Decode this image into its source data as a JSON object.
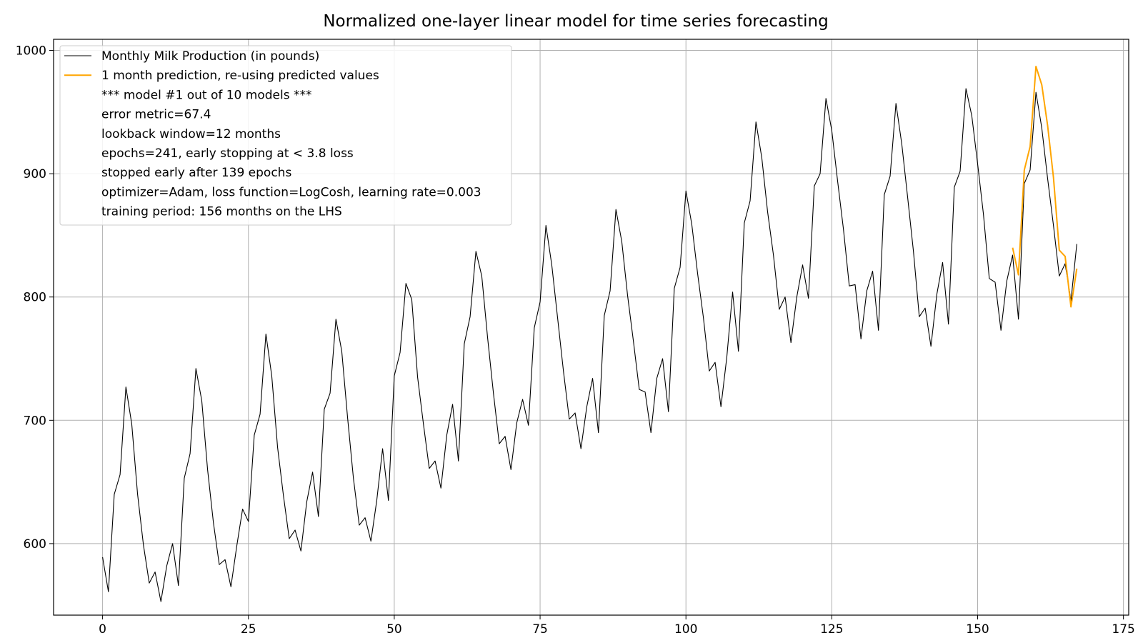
{
  "chart_data": {
    "type": "line",
    "title": "Normalized one-layer linear model for time series forecasting",
    "xlabel": "",
    "ylabel": "",
    "xlim": [
      -8.4,
      175.9
    ],
    "ylim": [
      542,
      1009
    ],
    "x_ticks": [
      0,
      25,
      50,
      75,
      100,
      125,
      150,
      175
    ],
    "y_ticks": [
      600,
      700,
      800,
      900,
      1000
    ],
    "grid": true,
    "legend_position": "top-left",
    "series": [
      {
        "name": "Monthly Milk Production (in pounds)",
        "color": "#000000",
        "x_start": 0,
        "values": [
          589,
          561,
          640,
          656,
          727,
          697,
          640,
          599,
          568,
          577,
          553,
          582,
          600,
          566,
          653,
          673,
          742,
          716,
          660,
          617,
          583,
          587,
          565,
          598,
          628,
          618,
          688,
          705,
          770,
          736,
          678,
          639,
          604,
          611,
          594,
          634,
          658,
          622,
          709,
          722,
          782,
          756,
          702,
          653,
          615,
          621,
          602,
          635,
          677,
          635,
          736,
          755,
          811,
          798,
          735,
          697,
          661,
          667,
          645,
          688,
          713,
          667,
          762,
          784,
          837,
          817,
          767,
          722,
          681,
          687,
          660,
          698,
          717,
          696,
          775,
          796,
          858,
          826,
          783,
          740,
          701,
          706,
          677,
          711,
          734,
          690,
          785,
          805,
          871,
          845,
          801,
          764,
          725,
          723,
          690,
          734,
          750,
          707,
          807,
          824,
          886,
          859,
          819,
          783,
          740,
          747,
          711,
          751,
          804,
          756,
          860,
          878,
          942,
          913,
          869,
          834,
          790,
          800,
          763,
          800,
          826,
          799,
          890,
          900,
          961,
          935,
          894,
          855,
          809,
          810,
          766,
          805,
          821,
          773,
          883,
          898,
          957,
          924,
          881,
          837,
          784,
          791,
          760,
          802,
          828,
          778,
          889,
          902,
          969,
          947,
          908,
          867,
          815,
          812,
          773,
          813,
          834,
          782,
          892,
          903,
          966,
          937,
          896,
          858,
          817,
          827,
          797,
          843
        ]
      },
      {
        "name": "1 month prediction, re-using predicted values",
        "color": "#FFA500",
        "x_start": 156,
        "values": [
          840,
          818,
          903,
          922,
          987,
          972,
          939,
          897,
          838,
          833,
          792,
          823
        ]
      }
    ],
    "legend_entries": [
      {
        "text": "Monthly Milk Production (in pounds)",
        "color": "#000000",
        "has_line": true
      },
      {
        "text": "1 month prediction, re-using predicted values",
        "color": "#FFA500",
        "has_line": true
      },
      {
        "text": "*** model #1 out of 10 models ***",
        "has_line": false
      },
      {
        "text": "error metric=67.4",
        "has_line": false
      },
      {
        "text": "lookback window=12 months",
        "has_line": false
      },
      {
        "text": "epochs=241, early stopping at < 3.8 loss",
        "has_line": false
      },
      {
        "text": "  stopped early after 139 epochs",
        "has_line": false
      },
      {
        "text": "optimizer=Adam, loss function=LogCosh, learning rate=0.003",
        "has_line": false
      },
      {
        "text": "training period: 156 months on the LHS",
        "has_line": false
      }
    ]
  }
}
